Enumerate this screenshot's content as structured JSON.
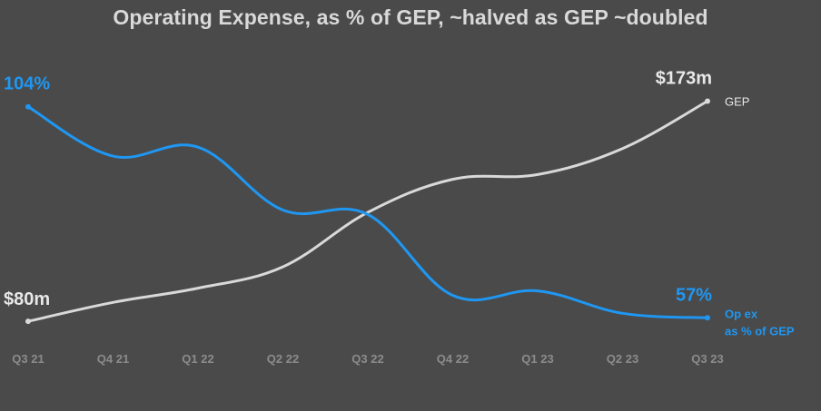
{
  "title": "Operating Expense, as % of GEP, ~halved as GEP ~doubled",
  "chart_data": {
    "type": "line",
    "title": "Operating Expense, as % of GEP, ~halved as GEP ~doubled",
    "categories": [
      "Q3 21",
      "Q4 21",
      "Q1 22",
      "Q2 22",
      "Q3 22",
      "Q4 22",
      "Q1 23",
      "Q2 23",
      "Q3 23"
    ],
    "grid": false,
    "series": [
      {
        "name": "GEP",
        "color": "#d9d9d9",
        "values": [
          80,
          88,
          94,
          103,
          126,
          140,
          142,
          153,
          173
        ],
        "ylim": [
          72,
          182
        ],
        "start_label": "$80m",
        "end_label": "$173m",
        "series_label": [
          "GEP"
        ]
      },
      {
        "name": "Op ex as % of GEP",
        "color": "#1f97f2",
        "values": [
          104,
          93,
          95,
          81,
          80,
          62,
          63,
          58,
          57
        ],
        "ylim": [
          52,
          110
        ],
        "start_label": "104%",
        "end_label": "57%",
        "series_label": [
          "Op ex",
          "as % of GEP"
        ]
      }
    ]
  }
}
